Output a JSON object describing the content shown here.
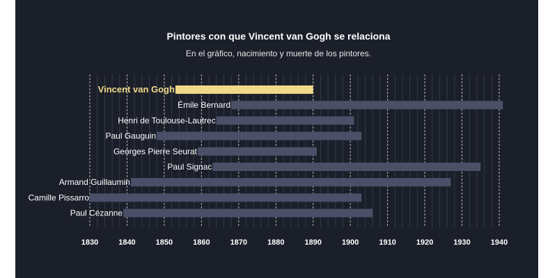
{
  "title": "Pintores con que Vincent van Gogh se relaciona",
  "subtitle": "En el gráfico, nacimiento y muerte de los pintores.",
  "colors": {
    "background": "#1b1f2a",
    "bar": "#4a5068",
    "highlight": "#f0d98a",
    "grid": "#9a9a9a"
  },
  "chart_data": {
    "type": "bar",
    "orientation": "horizontal",
    "title": "Pintores con que Vincent van Gogh se relaciona",
    "subtitle": "En el gráfico, nacimiento y muerte de los pintores.",
    "xlim": [
      1830,
      1940
    ],
    "xticks": [
      1830,
      1840,
      1850,
      1860,
      1870,
      1880,
      1890,
      1900,
      1910,
      1920,
      1930,
      1940
    ],
    "grid": true,
    "series": [
      {
        "name": "Vincent van Gogh",
        "start": 1853,
        "end": 1890,
        "highlight": true
      },
      {
        "name": "Émile Bernard",
        "start": 1868,
        "end": 1941
      },
      {
        "name": "Henri de Toulouse-Lautrec",
        "start": 1864,
        "end": 1901
      },
      {
        "name": "Paul Gauguin",
        "start": 1848,
        "end": 1903
      },
      {
        "name": "Georges Pierre Seurat",
        "start": 1859,
        "end": 1891
      },
      {
        "name": "Paul Signac",
        "start": 1863,
        "end": 1935
      },
      {
        "name": "Armand Guillaumin",
        "start": 1841,
        "end": 1927
      },
      {
        "name": "Camille Pissarro",
        "start": 1830,
        "end": 1903
      },
      {
        "name": "Paul Cézanne",
        "start": 1839,
        "end": 1906
      }
    ]
  }
}
